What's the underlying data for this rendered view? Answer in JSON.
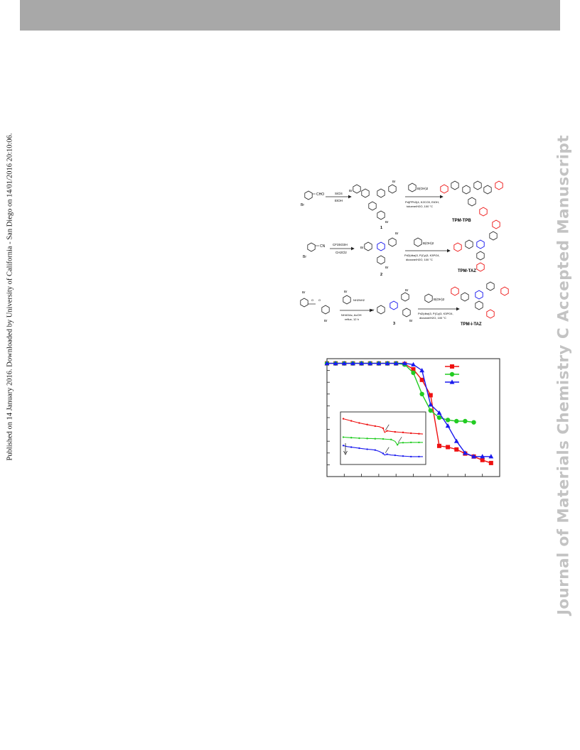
{
  "side_note": "Published on 14 January 2016. Downloaded by University of California - San Diego on 14/01/2016 20:10:06.",
  "watermark": "Journal of Materials Chemistry C Accepted Manuscript",
  "scheme": {
    "row1": {
      "start_sub": "CHO",
      "start_br": "Br",
      "step1_top": "SiCl4",
      "step1_bottom": "EtOH",
      "intermediate_label": "1",
      "step2_top": "B(OH)2",
      "step2_bottom1": "Pd(PPh3)4, K2CO3, EtOH,",
      "step2_bottom2": "toluene/H2O, 100 °C",
      "product": "TPM-TPB"
    },
    "row2": {
      "start_sub": "CN",
      "start_br": "Br",
      "step1_top": "CF3SO3H",
      "step1_bottom": "CH2Cl2",
      "intermediate_label": "2",
      "step2_top": "B(OH)2",
      "step2_bottom1": "Pd2(dba)3, P(Cy)3, K3PO4,",
      "step2_bottom2": "dioxane/H2O, 100 °C",
      "product": "TPM-TAZ"
    },
    "row3": {
      "step1_top": "NH2NH2",
      "step1_bottom1": "NH4OAc, AcOH",
      "step1_bottom2": "reflux, 12 h",
      "intermediate_label": "3",
      "step2_top": "B(OH)2",
      "step2_bottom1": "Pd2(dba)3, P(Cy)3, K3PO4,",
      "step2_bottom2": "dioxane/H2O, 100 °C",
      "product": "TPM-i-TAZ"
    }
  },
  "colors": {
    "red": "#ee1111",
    "green": "#22cc22",
    "blue": "#1a1aee",
    "header_bar": "#a8a8a8",
    "watermark": "#c3c3c3"
  },
  "chart_data": {
    "type": "line",
    "legend_position": "top-right",
    "x_range": [
      0,
      10
    ],
    "y_range": [
      0,
      10
    ],
    "series": [
      {
        "color": "#ee1111",
        "marker": "square",
        "x": [
          0,
          0.5,
          1,
          1.5,
          2,
          2.5,
          3,
          3.5,
          4,
          4.5,
          5,
          5.5,
          6,
          6.5,
          7,
          7.5,
          8,
          8.5,
          9,
          9.5
        ],
        "y": [
          9.6,
          9.6,
          9.6,
          9.6,
          9.6,
          9.6,
          9.6,
          9.6,
          9.6,
          9.55,
          9.1,
          8.2,
          6.9,
          2.6,
          2.5,
          2.3,
          1.95,
          1.7,
          1.4,
          1.15
        ]
      },
      {
        "color": "#22cc22",
        "marker": "circle",
        "x": [
          0,
          0.5,
          1,
          1.5,
          2,
          2.5,
          3,
          3.5,
          4,
          4.5,
          5,
          5.5,
          6,
          6.5,
          7,
          7.5,
          8,
          8.5
        ],
        "y": [
          9.6,
          9.6,
          9.6,
          9.6,
          9.6,
          9.6,
          9.6,
          9.6,
          9.6,
          9.5,
          8.8,
          7.0,
          5.6,
          5.0,
          4.8,
          4.7,
          4.7,
          4.6
        ]
      },
      {
        "color": "#1a1aee",
        "marker": "triangle",
        "x": [
          0,
          0.5,
          1,
          1.5,
          2,
          2.5,
          3,
          3.5,
          4,
          4.5,
          5,
          5.5,
          6,
          6.5,
          7,
          7.5,
          8,
          8.5,
          9,
          9.5
        ],
        "y": [
          9.6,
          9.6,
          9.6,
          9.6,
          9.6,
          9.6,
          9.6,
          9.6,
          9.6,
          9.6,
          9.5,
          9.0,
          6.1,
          5.4,
          4.3,
          3.0,
          2.0,
          1.7,
          1.7,
          1.7
        ]
      }
    ],
    "inset": {
      "x_range": [
        0,
        10
      ],
      "y_range": [
        0,
        10
      ],
      "series": [
        {
          "color": "#ee1111",
          "x": [
            0,
            0.5,
            1,
            1.5,
            2,
            2.5,
            3,
            3.5,
            4,
            4.5,
            5,
            5.2,
            5.5,
            6,
            6.5,
            7,
            7.5,
            8,
            8.5,
            9,
            9.5,
            10
          ],
          "y": [
            8.7,
            8.5,
            8.3,
            8.1,
            7.9,
            7.75,
            7.6,
            7.45,
            7.3,
            7.2,
            6.9,
            6.1,
            6.4,
            6.3,
            6.2,
            6.15,
            6.1,
            6.0,
            5.95,
            5.9,
            5.85,
            5.8
          ]
        },
        {
          "color": "#22cc22",
          "x": [
            0,
            0.5,
            1,
            1.5,
            2,
            2.5,
            3,
            3.5,
            4,
            4.5,
            5,
            5.5,
            6,
            6.5,
            6.8,
            7,
            7.5,
            8,
            8.5,
            9,
            9.5,
            10
          ],
          "y": [
            5.2,
            5.15,
            5.1,
            5.05,
            5.0,
            5.0,
            4.95,
            4.95,
            4.9,
            4.9,
            4.85,
            4.8,
            4.75,
            4.4,
            3.75,
            4.1,
            4.15,
            4.15,
            4.2,
            4.2,
            4.2,
            4.2
          ]
        },
        {
          "color": "#1a1aee",
          "x": [
            0,
            0.5,
            1,
            1.5,
            2,
            2.5,
            3,
            3.5,
            4,
            4.5,
            5,
            5.2,
            5.5,
            6,
            6.5,
            7,
            7.5,
            8,
            8.5,
            9,
            9.5,
            10
          ],
          "y": [
            3.6,
            3.4,
            3.3,
            3.2,
            3.1,
            3.0,
            2.9,
            2.85,
            2.75,
            2.5,
            2.1,
            1.8,
            1.95,
            1.8,
            1.75,
            1.65,
            1.6,
            1.55,
            1.5,
            1.5,
            1.5,
            1.5
          ]
        }
      ],
      "arrows_at_x": [
        5.2,
        6.8,
        5.2
      ]
    }
  }
}
